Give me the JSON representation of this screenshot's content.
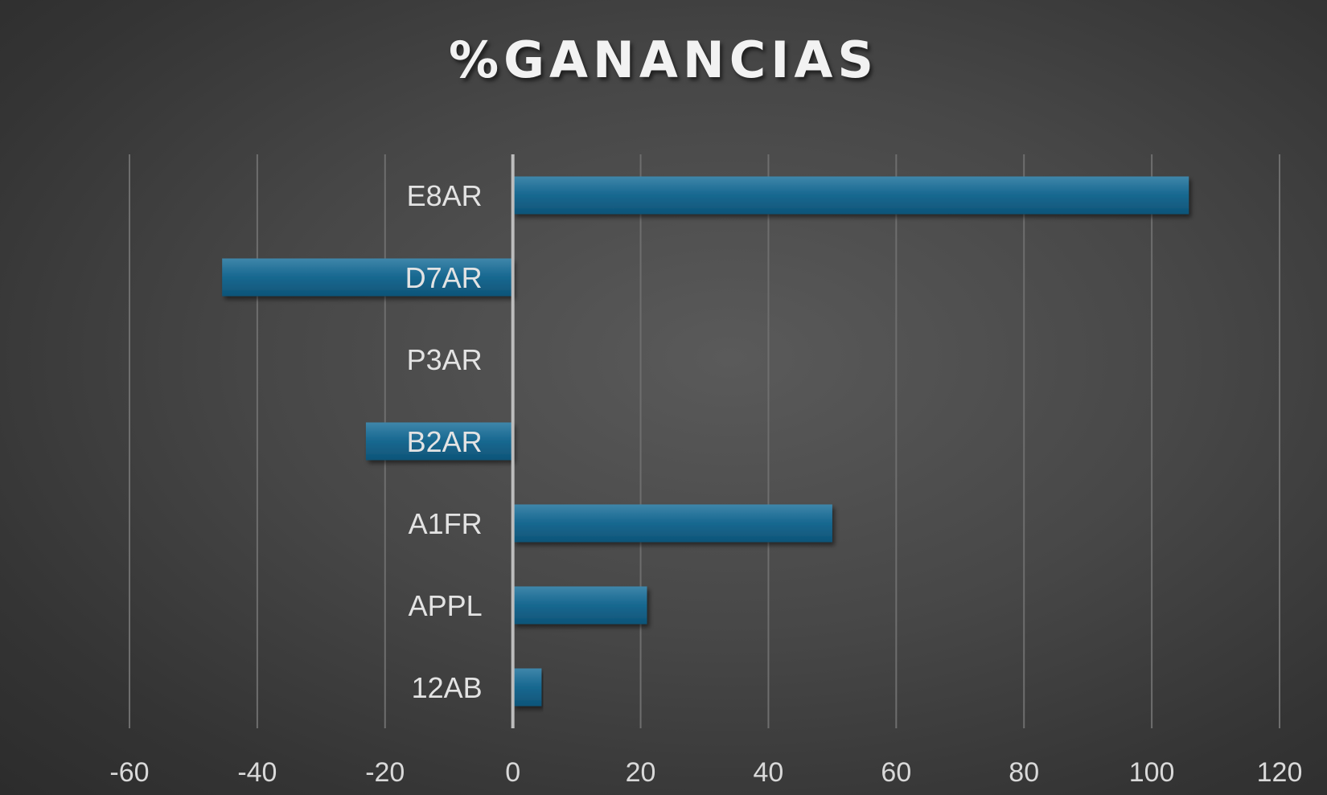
{
  "chart_data": {
    "type": "bar",
    "orientation": "horizontal",
    "title": "%GANANCIAS",
    "categories": [
      "E8AR",
      "D7AR",
      "P3AR",
      "B2AR",
      "A1FR",
      "APPL",
      "12AB"
    ],
    "values": [
      105.8,
      -45.5,
      0,
      -23,
      50,
      21,
      4.5
    ],
    "xlim": [
      -60,
      120
    ],
    "xticks": [
      "-60",
      "-40",
      "-20",
      "0",
      "20",
      "40",
      "60",
      "80",
      "100",
      "120"
    ],
    "grid": true,
    "legend": "none",
    "bar_color": "#1a6a92",
    "bar_color_light": "#3f86aa",
    "bar_color_dark": "#0e5478"
  }
}
